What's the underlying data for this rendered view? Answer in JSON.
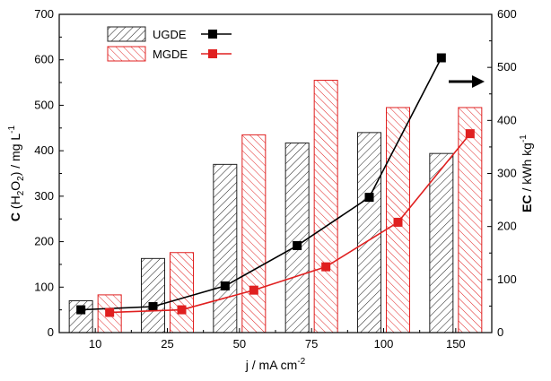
{
  "chart_data": {
    "type": "bar",
    "categories": [
      "10",
      "25",
      "50",
      "75",
      "100",
      "150"
    ],
    "bar_series": [
      {
        "name": "UGDE",
        "values": [
          70,
          163,
          370,
          417,
          440,
          394
        ],
        "color": "#000000",
        "pattern": "hatched"
      },
      {
        "name": "MGDE",
        "values": [
          83,
          176,
          435,
          555,
          495,
          495
        ],
        "color": "#e02020",
        "pattern": "hatched"
      }
    ],
    "line_series": [
      {
        "name": "UGDE",
        "axis": "right",
        "values": [
          43,
          49,
          88,
          164,
          255,
          518
        ],
        "color": "#000000",
        "marker": "square"
      },
      {
        "name": "MGDE",
        "axis": "right",
        "values": [
          38,
          43,
          80,
          124,
          208,
          375
        ],
        "color": "#e02020",
        "marker": "square"
      }
    ],
    "xlabel": "j / mA cm",
    "xlabel_superscript": "-2",
    "ylabel_left": {
      "prefix": "C",
      "open": " (H",
      "sub1": "2",
      "mid": "O",
      "sub2": "2",
      "close": ") / mg L",
      "sup": "-1"
    },
    "ylabel_right": {
      "prefix": "EC",
      "rest": " / kWh kg",
      "sup": "-1"
    },
    "ylim_left": [
      0,
      700
    ],
    "ylim_right": [
      0,
      600
    ],
    "yticks_left": [
      "0",
      "100",
      "200",
      "300",
      "400",
      "500",
      "600",
      "700"
    ],
    "yticks_right": [
      "0",
      "100",
      "200",
      "300",
      "400",
      "500",
      "600"
    ],
    "legend": {
      "placement": "top-left",
      "entries": [
        "UGDE",
        "MGDE"
      ]
    },
    "annotation": "right-arrow",
    "grid": false
  }
}
